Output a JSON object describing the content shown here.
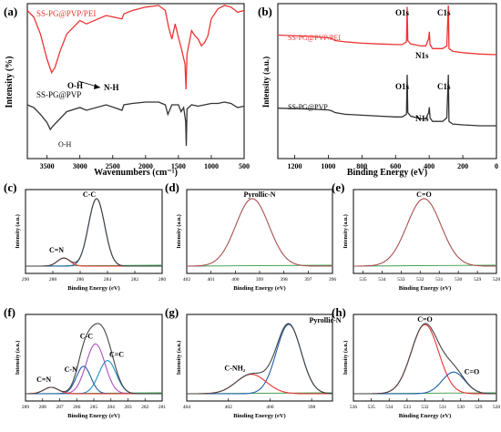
{
  "chart_data": [
    {
      "type": "line",
      "panel": "(a)",
      "xlabel": "Wavenumbers (cm⁻¹)",
      "ylabel": "Intensity (%)",
      "xlim": [
        3800,
        500
      ],
      "xticks": [
        "3500",
        "3000",
        "2500",
        "2000",
        "1500",
        "1000",
        "500"
      ],
      "series": [
        {
          "name": "SS-PG@PVP/PEI",
          "color": "#ee3333",
          "x": [
            3800,
            3700,
            3600,
            3500,
            3430,
            3380,
            3300,
            3200,
            3000,
            2900,
            2600,
            2360,
            2330,
            2200,
            2000,
            1800,
            1700,
            1650,
            1600,
            1550,
            1500,
            1460,
            1400,
            1385,
            1370,
            1300,
            1250,
            1200,
            1150,
            1100,
            1050,
            1000,
            900,
            800,
            700,
            600,
            500
          ],
          "y": [
            92,
            88,
            78,
            63,
            55,
            58,
            68,
            78,
            86,
            84,
            89,
            87,
            90,
            92,
            94,
            95,
            92,
            82,
            75,
            84,
            76,
            70,
            60,
            45,
            66,
            80,
            77,
            75,
            71,
            73,
            77,
            87,
            93,
            95,
            94,
            91,
            92
          ]
        },
        {
          "name": "SS-PG@PVP",
          "color": "#333333",
          "x": [
            3800,
            3700,
            3600,
            3500,
            3450,
            3400,
            3300,
            3200,
            3000,
            2900,
            2600,
            2360,
            2330,
            2200,
            2000,
            1800,
            1700,
            1660,
            1600,
            1500,
            1460,
            1420,
            1390,
            1380,
            1370,
            1300,
            1200,
            1100,
            1000,
            900,
            800,
            700,
            600,
            500
          ],
          "y": [
            40,
            38,
            33,
            27,
            22,
            25,
            30,
            35,
            38,
            36,
            40,
            36,
            40,
            41,
            42,
            42,
            40,
            33,
            40,
            40,
            35,
            38,
            28,
            10,
            37,
            40,
            39,
            40,
            41,
            41,
            42,
            41,
            38,
            39
          ]
        }
      ],
      "annotations": [
        "O-H",
        "N-H",
        "O-H"
      ]
    },
    {
      "type": "line",
      "panel": "(b)",
      "xlabel": "Binding Energy (eV)",
      "ylabel": "Intensity (a.u.)",
      "xlim": [
        1300,
        0
      ],
      "xticks": [
        "1200",
        "1000",
        "800",
        "600",
        "400",
        "200",
        "0"
      ],
      "series": [
        {
          "name": "SS-PG@PVP/PEI",
          "color": "#ee3333",
          "x": [
            1300,
            1100,
            1000,
            980,
            960,
            900,
            800,
            700,
            600,
            560,
            535,
            531,
            527,
            510,
            450,
            420,
            403,
            399,
            395,
            380,
            320,
            295,
            286,
            282,
            260,
            200,
            100,
            0
          ],
          "y": [
            108,
            106,
            104,
            103,
            100,
            98,
            96,
            95,
            94,
            94,
            98,
            150,
            100,
            95,
            92,
            92,
            103,
            113,
            94,
            88,
            88,
            92,
            152,
            88,
            84,
            82,
            80,
            79
          ]
        },
        {
          "name": "SS-PG@PVP",
          "color": "#333333",
          "x": [
            1300,
            1100,
            1000,
            980,
            960,
            900,
            800,
            700,
            600,
            560,
            535,
            531,
            527,
            510,
            450,
            420,
            403,
            399,
            395,
            380,
            320,
            295,
            286,
            282,
            260,
            200,
            100,
            0
          ],
          "y": [
            45,
            44,
            43,
            42,
            40,
            38,
            37,
            36,
            35,
            35,
            38,
            83,
            40,
            36,
            33,
            33,
            40,
            46,
            34,
            30,
            30,
            34,
            83,
            30,
            27,
            26,
            25,
            25
          ]
        }
      ],
      "annotations": [
        "O1s",
        "N1s",
        "C1s",
        "O1s",
        "N1s",
        "C1s"
      ]
    },
    {
      "type": "line",
      "panel": "(c)",
      "xlabel": "Binding Energy (eV)",
      "ylabel": "Intensity (a.u.)",
      "xlim": [
        290,
        280
      ],
      "xticks": [
        "290",
        "288",
        "286",
        "284",
        "282",
        "280"
      ],
      "peaks": [
        {
          "name": "C-C",
          "center": 284.8,
          "height": 100,
          "fwhm": 1.4
        },
        {
          "name": "C=N",
          "center": 287.2,
          "height": 12,
          "fwhm": 1.1
        }
      ]
    },
    {
      "type": "line",
      "panel": "(d)",
      "xlabel": "Binding Energy (eV)",
      "ylabel": "Intensity (a.u.)",
      "xlim": [
        402,
        396
      ],
      "xticks": [
        "402",
        "401",
        "400",
        "399",
        "398",
        "397",
        "396"
      ],
      "peaks": [
        {
          "name": "Pyrollic-N",
          "center": 399.3,
          "height": 100,
          "fwhm": 1.6
        }
      ]
    },
    {
      "type": "line",
      "panel": "(e)",
      "xlabel": "Binding Energy (eV)",
      "ylabel": "Intensity (a.u.)",
      "xlim": [
        535.5,
        528
      ],
      "xticks": [
        "535",
        "534",
        "533",
        "532",
        "531",
        "530",
        "529",
        "528"
      ],
      "peaks": [
        {
          "name": "C=O",
          "center": 531.8,
          "height": 100,
          "fwhm": 2.1
        }
      ]
    },
    {
      "type": "line",
      "panel": "(f)",
      "xlabel": "Binding Energy (eV)",
      "ylabel": "Intensity (a.u.)",
      "xlim": [
        289,
        281
      ],
      "xticks": [
        "289",
        "288",
        "287",
        "286",
        "285",
        "284",
        "283",
        "282",
        "281"
      ],
      "peaks": [
        {
          "name": "C-C",
          "center": 284.9,
          "height": 78,
          "fwhm": 1.3
        },
        {
          "name": "C=C",
          "center": 284.2,
          "height": 52,
          "fwhm": 1.2
        },
        {
          "name": "C-N",
          "center": 285.6,
          "height": 43,
          "fwhm": 1.0
        },
        {
          "name": "C=N",
          "center": 287.5,
          "height": 10,
          "fwhm": 1.0
        }
      ]
    },
    {
      "type": "line",
      "panel": "(g)",
      "xlabel": "Binding Energy (eV)",
      "ylabel": "Intensity (a.u.)",
      "xlim": [
        404,
        397
      ],
      "xticks": [
        "404",
        "402",
        "400",
        "398"
      ],
      "peaks": [
        {
          "name": "Pyrollic-N",
          "center": 399.1,
          "height": 100,
          "fwhm": 1.4
        },
        {
          "name": "C-NH₂",
          "center": 400.9,
          "height": 28,
          "fwhm": 1.7
        }
      ]
    },
    {
      "type": "line",
      "panel": "(h)",
      "xlabel": "Binding Energy (eV)",
      "ylabel": "Intensity (a.u.)",
      "xlim": [
        536,
        528
      ],
      "xticks": [
        "536",
        "535",
        "534",
        "533",
        "532",
        "531",
        "530",
        "529",
        "528"
      ],
      "peaks": [
        {
          "name": "C=O",
          "center": 532.0,
          "height": 80,
          "fwhm": 1.8
        },
        {
          "name": "C=O",
          "center": 530.4,
          "height": 25,
          "fwhm": 1.5
        }
      ]
    }
  ],
  "panel_labels": [
    "(a)",
    "(b)",
    "(c)",
    "(d)",
    "(e)",
    "(f)",
    "(g)",
    "(h)"
  ],
  "colors": {
    "red": "#ee3333",
    "black": "#333333",
    "blue": "#1f5fa8",
    "cyan": "#18b0b0",
    "purple": "#b050c0",
    "darkred": "#a85050",
    "green": "#3a9a4a",
    "envelope": "#444444"
  }
}
